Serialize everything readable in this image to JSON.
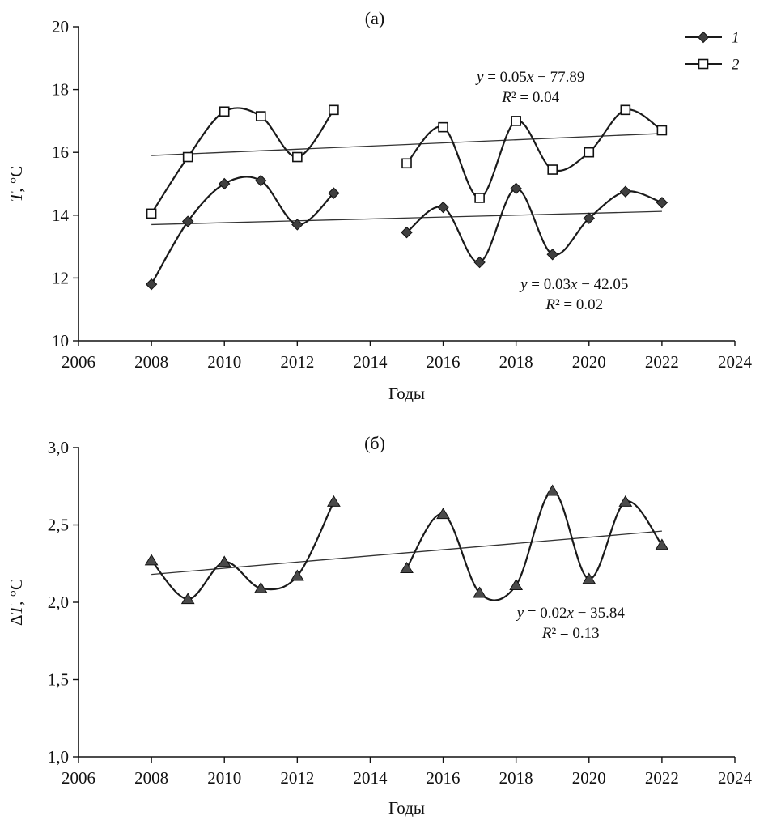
{
  "chart_data": [
    {
      "id": "chart-a",
      "type": "line",
      "title": "(а)",
      "xlabel": "Годы",
      "ylabel": "T, °C",
      "xlim": [
        2006,
        2024
      ],
      "ylim": [
        10,
        20
      ],
      "grid": false,
      "xticks": [
        2006,
        2008,
        2010,
        2012,
        2014,
        2016,
        2018,
        2020,
        2022,
        2024
      ],
      "yticks": [
        {
          "v": 10,
          "label": "10"
        },
        {
          "v": 12,
          "label": "12"
        },
        {
          "v": 14,
          "label": "14"
        },
        {
          "v": 16,
          "label": "16"
        },
        {
          "v": 18,
          "label": "18"
        },
        {
          "v": 20,
          "label": "20"
        }
      ],
      "legend": {
        "position": "top-right",
        "items": [
          {
            "label": "1",
            "marker": "diamond"
          },
          {
            "label": "2",
            "marker": "square-open"
          }
        ]
      },
      "series": [
        {
          "name": "1",
          "marker": "diamond",
          "color": "#3f3f3f",
          "x": [
            2008,
            2009,
            2010,
            2011,
            2012,
            2013,
            2015,
            2016,
            2017,
            2018,
            2019,
            2020,
            2021,
            2022
          ],
          "y": [
            11.8,
            13.8,
            15.0,
            15.1,
            13.7,
            14.7,
            13.45,
            14.25,
            12.5,
            14.85,
            12.75,
            13.9,
            14.75,
            14.4
          ],
          "trend": {
            "x": [
              2008,
              2022
            ],
            "y": [
              13.7,
              14.12
            ]
          }
        },
        {
          "name": "2",
          "marker": "square-open",
          "color": "#ffffff",
          "x": [
            2008,
            2009,
            2010,
            2011,
            2012,
            2013,
            2015,
            2016,
            2017,
            2018,
            2019,
            2020,
            2021,
            2022
          ],
          "y": [
            14.05,
            15.85,
            17.3,
            17.15,
            15.85,
            17.35,
            15.65,
            16.8,
            14.55,
            17.0,
            15.45,
            16.0,
            17.35,
            16.7
          ],
          "trend": {
            "x": [
              2008,
              2022
            ],
            "y": [
              15.9,
              16.6
            ]
          }
        }
      ],
      "annotations": [
        {
          "x": 2018.4,
          "y": 18.25,
          "lines": [
            "y = 0.05x − 77.89",
            "R² = 0.04"
          ]
        },
        {
          "x": 2019.6,
          "y": 11.65,
          "lines": [
            "y = 0.03x − 42.05",
            "R² = 0.02"
          ]
        }
      ]
    },
    {
      "id": "chart-b",
      "type": "line",
      "title": "(б)",
      "xlabel": "Годы",
      "ylabel": "ΔT, °C",
      "xlim": [
        2006,
        2024
      ],
      "ylim": [
        1.0,
        3.0
      ],
      "grid": false,
      "xticks": [
        2006,
        2008,
        2010,
        2012,
        2014,
        2016,
        2018,
        2020,
        2022,
        2024
      ],
      "yticks": [
        {
          "v": 1.0,
          "label": "1,0"
        },
        {
          "v": 1.5,
          "label": "1,5"
        },
        {
          "v": 2.0,
          "label": "2,0"
        },
        {
          "v": 2.5,
          "label": "2,5"
        },
        {
          "v": 3.0,
          "label": "3,0"
        }
      ],
      "series": [
        {
          "name": "ΔT",
          "marker": "triangle",
          "color": "#4a4a4a",
          "x": [
            2008,
            2009,
            2010,
            2011,
            2012,
            2013,
            2015,
            2016,
            2017,
            2018,
            2019,
            2020,
            2021,
            2022
          ],
          "y": [
            2.27,
            2.02,
            2.26,
            2.09,
            2.17,
            2.65,
            2.22,
            2.57,
            2.06,
            2.11,
            2.72,
            2.15,
            2.65,
            2.37
          ],
          "trend": {
            "x": [
              2008,
              2022
            ],
            "y": [
              2.18,
              2.46
            ]
          }
        }
      ],
      "annotations": [
        {
          "x": 2019.5,
          "y": 1.9,
          "lines": [
            "y = 0.02x − 35.84",
            "R² = 0.13"
          ]
        }
      ]
    }
  ]
}
